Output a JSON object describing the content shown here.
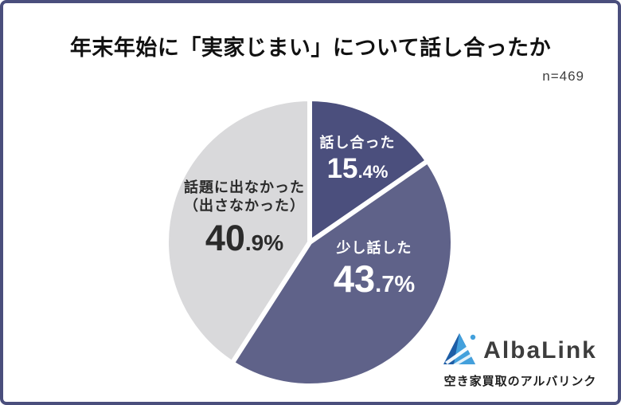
{
  "card": {
    "title": "年末年始に「実家じまい」について話し合ったか",
    "sample_size_label": "n=469",
    "border_color": "#4a4e7c",
    "background_color": "#ffffff"
  },
  "chart_data": {
    "type": "pie",
    "title": "年末年始に「実家じまい」について話し合ったか",
    "sample_size": 469,
    "start_angle_deg": -90,
    "direction": "clockwise",
    "legend_position": "none",
    "labels_on_slices": true,
    "segments": [
      {
        "label": "話し合った",
        "value": 15.4,
        "pct_int": "15",
        "pct_frac": ".4%",
        "color": "#4b4f7d",
        "text_color": "#ffffff"
      },
      {
        "label": "少し話した",
        "value": 43.7,
        "pct_int": "43",
        "pct_frac": ".7%",
        "color": "#5f6289",
        "text_color": "#ffffff"
      },
      {
        "label": "話題に出なかった",
        "label_line2": "（出さなかった）",
        "value": 40.9,
        "pct_int": "40",
        "pct_frac": ".9%",
        "color": "#d9d9db",
        "text_color": "#2b2b2b"
      }
    ],
    "slice_gap_color": "#ffffff"
  },
  "logo": {
    "wordmark": "AlbaLink",
    "tagline": "空き家買取のアルバリンク",
    "colors": {
      "dark_blue": "#1d5da6",
      "light_blue": "#43a0dc",
      "text": "#3d3d3d"
    }
  }
}
